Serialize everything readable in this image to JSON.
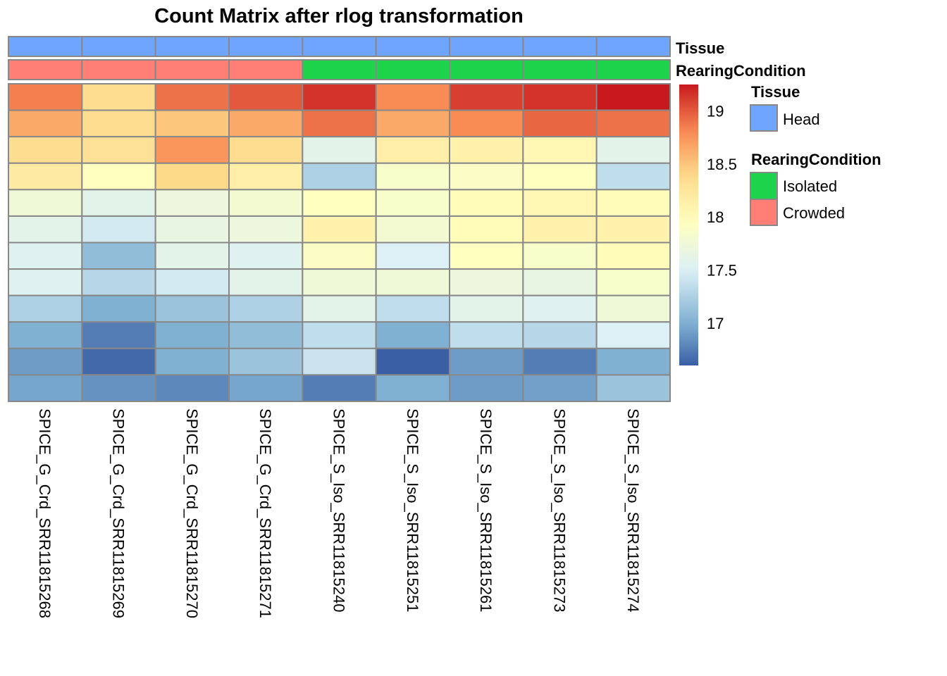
{
  "chart_data": {
    "type": "heatmap",
    "title": "Count Matrix after rlog transformation",
    "columns": [
      "SPICE_G_Crd_SRR11815268",
      "SPICE_G_Crd_SRR11815269",
      "SPICE_G_Crd_SRR11815270",
      "SPICE_G_Crd_SRR11815271",
      "SPICE_S_Iso_SRR11815240",
      "SPICE_S_Iso_SRR11815251",
      "SPICE_S_Iso_SRR11815261",
      "SPICE_S_Iso_SRR11815273",
      "SPICE_S_Iso_SRR11815274"
    ],
    "values": [
      [
        18.85,
        18.35,
        18.9,
        19.0,
        19.15,
        18.8,
        19.1,
        19.15,
        19.25
      ],
      [
        18.65,
        18.35,
        18.5,
        18.65,
        18.9,
        18.65,
        18.8,
        18.95,
        18.9
      ],
      [
        18.35,
        18.3,
        18.75,
        18.35,
        17.6,
        18.15,
        18.1,
        18.05,
        17.6
      ],
      [
        18.2,
        17.95,
        18.4,
        18.15,
        17.25,
        17.85,
        17.9,
        17.95,
        17.35
      ],
      [
        17.75,
        17.6,
        17.7,
        17.8,
        17.95,
        17.85,
        18.0,
        18.05,
        18.0
      ],
      [
        17.6,
        17.45,
        17.65,
        17.7,
        18.1,
        17.8,
        18.0,
        18.1,
        18.1
      ],
      [
        17.55,
        17.1,
        17.6,
        17.55,
        17.9,
        17.5,
        17.95,
        17.85,
        18.0
      ],
      [
        17.55,
        17.3,
        17.45,
        17.6,
        17.75,
        17.75,
        17.7,
        17.65,
        17.85
      ],
      [
        17.25,
        17.0,
        17.15,
        17.25,
        17.6,
        17.35,
        17.6,
        17.55,
        17.75
      ],
      [
        17.0,
        16.75,
        17.0,
        17.1,
        17.35,
        17.0,
        17.35,
        17.3,
        17.5
      ],
      [
        16.9,
        16.65,
        17.0,
        17.15,
        17.4,
        16.6,
        16.9,
        16.75,
        17.0
      ],
      [
        16.95,
        16.85,
        16.8,
        16.95,
        16.75,
        17.0,
        16.9,
        16.92,
        17.15
      ]
    ],
    "color_range": [
      16.6,
      19.25
    ],
    "color_stops": [
      {
        "v": 16.6,
        "c": "#3a5fa5"
      },
      {
        "v": 17.0,
        "c": "#80b0d2"
      },
      {
        "v": 17.5,
        "c": "#dcf0f5"
      },
      {
        "v": 17.95,
        "c": "#ffffbf"
      },
      {
        "v": 18.4,
        "c": "#fdd98a"
      },
      {
        "v": 18.8,
        "c": "#f98c55"
      },
      {
        "v": 19.25,
        "c": "#c8191e"
      }
    ],
    "colorbar_ticks": [
      {
        "value": 17,
        "label": "17"
      },
      {
        "value": 17.5,
        "label": "17.5"
      },
      {
        "value": 18,
        "label": "18"
      },
      {
        "value": 18.5,
        "label": "18.5"
      },
      {
        "value": 19,
        "label": "19"
      }
    ],
    "annotations": {
      "tissue_label": "Tissue",
      "tissue": [
        "Head",
        "Head",
        "Head",
        "Head",
        "Head",
        "Head",
        "Head",
        "Head",
        "Head"
      ],
      "rearing_label": "RearingCondition",
      "rearing": [
        "Crowded",
        "Crowded",
        "Crowded",
        "Crowded",
        "Isolated",
        "Isolated",
        "Isolated",
        "Isolated",
        "Isolated"
      ]
    },
    "legend": {
      "tissue_title": "Tissue",
      "tissue_items": [
        {
          "label": "Head",
          "color": "#6fa4ff"
        }
      ],
      "rearing_title": "RearingCondition",
      "rearing_items": [
        {
          "label": "Isolated",
          "color": "#1dd34a"
        },
        {
          "label": "Crowded",
          "color": "#ff7f76"
        }
      ]
    }
  }
}
